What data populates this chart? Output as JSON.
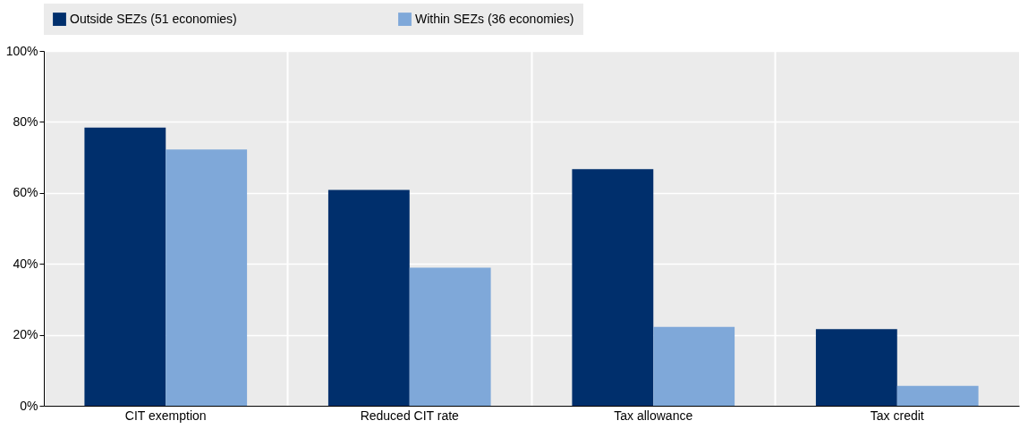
{
  "chart_data": {
    "type": "bar",
    "categories": [
      "CIT exemption",
      "Reduced CIT rate",
      "Tax allowance",
      "Tax credit"
    ],
    "series": [
      {
        "name": "Outside SEZs (51 economies)",
        "color": "#002f6c",
        "values": [
          78.4,
          60.8,
          66.7,
          21.6
        ]
      },
      {
        "name": "Within SEZs (36 economies)",
        "color": "#7fa8d9",
        "values": [
          72.2,
          38.9,
          22.2,
          5.6
        ]
      }
    ],
    "ylim": [
      0,
      100
    ],
    "yticks": [
      {
        "value": 0,
        "label": "0%"
      },
      {
        "value": 20,
        "label": "20%"
      },
      {
        "value": 40,
        "label": "40%"
      },
      {
        "value": 60,
        "label": "60%"
      },
      {
        "value": 80,
        "label": "80%"
      },
      {
        "value": 100,
        "label": "100%"
      }
    ],
    "grid": true,
    "legend": "top"
  }
}
